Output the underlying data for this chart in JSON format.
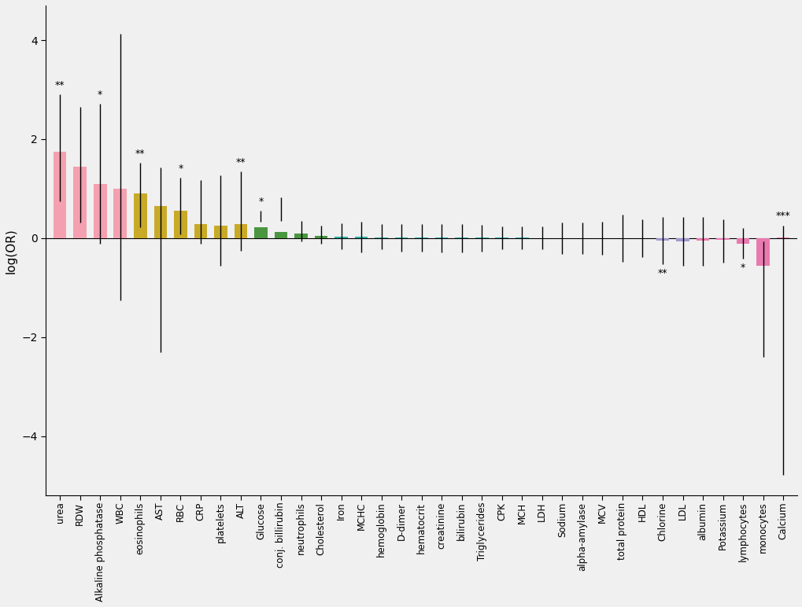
{
  "categories": [
    "urea",
    "RDW",
    "Alkaline phosphatase",
    "WBC",
    "eosinophils",
    "AST",
    "RBC",
    "CRP",
    "platelets",
    "ALT",
    "Glucose",
    "conj. billirubin",
    "neutrophils",
    "Cholesterol",
    "Iron",
    "MCHC",
    "hemoglobin",
    "D-dimer",
    "hematocrit",
    "creatinine",
    "bilirubin",
    "Triglycerides",
    "CPK",
    "MCH",
    "LDH",
    "Sodium",
    "alpha-amylase",
    "MCV",
    "total protein",
    "HDL",
    "Chlorine",
    "LDL",
    "albumin",
    "Potassium",
    "lymphocytes",
    "monocytes",
    "Calcium"
  ],
  "log_or": [
    1.75,
    1.45,
    1.1,
    1.0,
    0.9,
    0.65,
    0.55,
    0.28,
    0.25,
    0.28,
    0.22,
    0.12,
    0.1,
    0.05,
    0.03,
    0.025,
    0.02,
    0.018,
    0.016,
    0.012,
    0.01,
    0.009,
    0.008,
    0.007,
    0.006,
    0.005,
    0.004,
    0.003,
    0.002,
    0.001,
    -0.05,
    -0.06,
    -0.05,
    -0.04,
    -0.12,
    -0.55,
    0.02
  ],
  "ci_low": [
    0.75,
    0.32,
    -0.12,
    -1.25,
    0.22,
    -2.3,
    0.08,
    -0.12,
    -0.55,
    -0.25,
    0.33,
    0.35,
    -0.06,
    -0.12,
    -0.22,
    -0.28,
    -0.22,
    -0.27,
    -0.27,
    -0.28,
    -0.28,
    -0.27,
    -0.23,
    -0.23,
    -0.23,
    -0.32,
    -0.32,
    -0.33,
    -0.48,
    -0.38,
    -0.52,
    -0.55,
    -0.55,
    -0.5,
    -0.42,
    -2.4,
    -4.78
  ],
  "ci_high": [
    2.9,
    2.65,
    2.72,
    4.12,
    1.52,
    1.42,
    1.22,
    1.17,
    1.27,
    1.35,
    0.55,
    0.82,
    0.35,
    0.26,
    0.3,
    0.33,
    0.28,
    0.28,
    0.28,
    0.28,
    0.28,
    0.27,
    0.23,
    0.23,
    0.23,
    0.32,
    0.32,
    0.33,
    0.48,
    0.38,
    0.42,
    0.42,
    0.42,
    0.38,
    0.2,
    -0.06,
    0.26
  ],
  "significance": [
    "**",
    "",
    "*",
    "",
    "**",
    "",
    "*",
    "",
    "",
    "**",
    "*",
    "",
    "",
    "",
    "",
    "",
    "",
    "",
    "",
    "",
    "",
    "",
    "",
    "",
    "",
    "",
    "",
    "",
    "",
    "",
    "**",
    "",
    "",
    "",
    "*",
    "",
    "***"
  ],
  "colors": [
    "#F4A0B0",
    "#F4A0B0",
    "#F4A0B0",
    "#F4A0B0",
    "#C8AA28",
    "#C8AA28",
    "#C8AA28",
    "#C8AA28",
    "#C8AA28",
    "#C8AA28",
    "#4A9640",
    "#4A9640",
    "#4A9640",
    "#4A9640",
    "#30B0A8",
    "#30B0A8",
    "#30B0A8",
    "#30B0A8",
    "#30B0A8",
    "#30B0A8",
    "#30B0A8",
    "#30B0A8",
    "#30B0A8",
    "#30B0A8",
    "#30B0A8",
    "#45A0C8",
    "#45A0C8",
    "#45A0C8",
    "#A098D0",
    "#A098D0",
    "#A098D0",
    "#A098D0",
    "#E87AAF",
    "#E87AAF",
    "#E87AAF",
    "#E87AAF",
    "#E87AAF"
  ],
  "ylabel": "log(OR)",
  "ylim": [
    -5.2,
    4.7
  ],
  "yticks": [
    -4,
    -2,
    0,
    2,
    4
  ],
  "bg_color": "#F0F0F0"
}
